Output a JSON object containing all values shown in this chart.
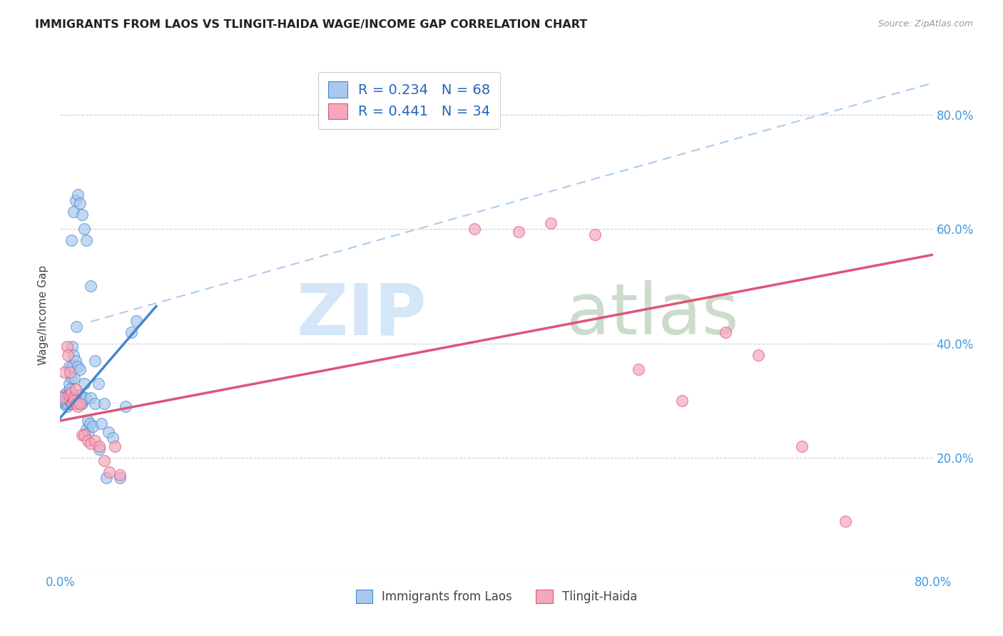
{
  "title": "IMMIGRANTS FROM LAOS VS TLINGIT-HAIDA WAGE/INCOME GAP CORRELATION CHART",
  "source": "Source: ZipAtlas.com",
  "ylabel": "Wage/Income Gap",
  "xlim": [
    0.0,
    0.8
  ],
  "ylim": [
    0.0,
    0.9
  ],
  "legend_label1": "Immigrants from Laos",
  "legend_label2": "Tlingit-Haida",
  "color_blue": "#A8C8F0",
  "color_pink": "#F4A8BC",
  "line_blue": "#4488CC",
  "line_pink": "#DD5577",
  "line_dashed_color": "#AACCEE",
  "watermark_zip_color": "#D0E4F8",
  "watermark_atlas_color": "#C8D8C8",
  "blue_x": [
    0.002,
    0.003,
    0.004,
    0.004,
    0.005,
    0.005,
    0.006,
    0.006,
    0.007,
    0.007,
    0.008,
    0.008,
    0.008,
    0.009,
    0.009,
    0.009,
    0.01,
    0.01,
    0.01,
    0.011,
    0.011,
    0.011,
    0.012,
    0.012,
    0.013,
    0.013,
    0.014,
    0.014,
    0.015,
    0.015,
    0.016,
    0.016,
    0.017,
    0.018,
    0.018,
    0.019,
    0.02,
    0.021,
    0.022,
    0.023,
    0.024,
    0.025,
    0.026,
    0.027,
    0.028,
    0.03,
    0.032,
    0.035,
    0.038,
    0.04,
    0.044,
    0.048,
    0.055,
    0.06,
    0.065,
    0.07,
    0.01,
    0.012,
    0.014,
    0.016,
    0.018,
    0.02,
    0.022,
    0.024,
    0.028,
    0.032,
    0.036,
    0.042
  ],
  "blue_y": [
    0.3,
    0.305,
    0.295,
    0.31,
    0.295,
    0.305,
    0.29,
    0.315,
    0.295,
    0.31,
    0.3,
    0.33,
    0.36,
    0.3,
    0.32,
    0.31,
    0.295,
    0.305,
    0.34,
    0.31,
    0.36,
    0.395,
    0.3,
    0.38,
    0.305,
    0.34,
    0.295,
    0.37,
    0.295,
    0.43,
    0.295,
    0.36,
    0.3,
    0.31,
    0.355,
    0.31,
    0.295,
    0.3,
    0.33,
    0.305,
    0.25,
    0.265,
    0.245,
    0.26,
    0.305,
    0.255,
    0.295,
    0.33,
    0.26,
    0.295,
    0.245,
    0.235,
    0.165,
    0.29,
    0.42,
    0.44,
    0.58,
    0.63,
    0.65,
    0.66,
    0.645,
    0.625,
    0.6,
    0.58,
    0.5,
    0.37,
    0.215,
    0.165
  ],
  "pink_x": [
    0.002,
    0.004,
    0.006,
    0.007,
    0.008,
    0.009,
    0.01,
    0.011,
    0.012,
    0.013,
    0.014,
    0.015,
    0.016,
    0.018,
    0.02,
    0.022,
    0.025,
    0.028,
    0.032,
    0.036,
    0.04,
    0.045,
    0.05,
    0.055,
    0.38,
    0.42,
    0.45,
    0.49,
    0.53,
    0.57,
    0.61,
    0.64,
    0.68,
    0.72
  ],
  "pink_y": [
    0.305,
    0.35,
    0.395,
    0.38,
    0.31,
    0.35,
    0.315,
    0.295,
    0.305,
    0.3,
    0.32,
    0.295,
    0.29,
    0.295,
    0.24,
    0.24,
    0.23,
    0.225,
    0.23,
    0.22,
    0.195,
    0.175,
    0.22,
    0.17,
    0.6,
    0.595,
    0.61,
    0.59,
    0.355,
    0.3,
    0.42,
    0.38,
    0.22,
    0.09
  ],
  "blue_line_x": [
    0.0,
    0.088
  ],
  "blue_line_y": [
    0.27,
    0.465
  ],
  "pink_line_x": [
    0.0,
    0.8
  ],
  "pink_line_y": [
    0.265,
    0.555
  ],
  "dash_line_x": [
    0.028,
    0.8
  ],
  "dash_line_y": [
    0.438,
    0.855
  ]
}
